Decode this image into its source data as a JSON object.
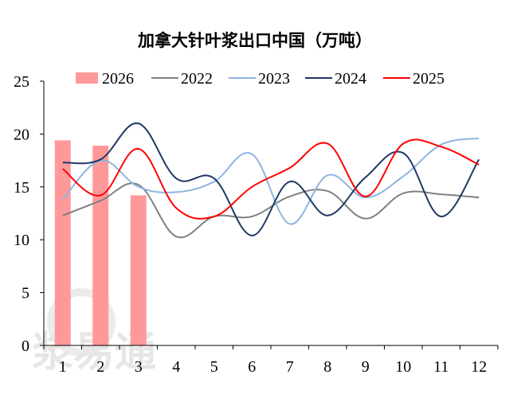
{
  "chart_data": {
    "type": "bar+line",
    "title": "加拿大针叶浆出口中国（万吨）",
    "categories": [
      "1",
      "2",
      "3",
      "4",
      "5",
      "6",
      "7",
      "8",
      "9",
      "10",
      "11",
      "12"
    ],
    "ylim": [
      0,
      25
    ],
    "yticks": [
      "0",
      "5",
      "10",
      "15",
      "20",
      "25"
    ],
    "grid": false,
    "legend_position": "top",
    "bar_series": {
      "name": "2026",
      "color": "#ff9999",
      "values": [
        19.4,
        18.9,
        14.2
      ]
    },
    "series": [
      {
        "name": "2022",
        "color": "#808080",
        "values": [
          12.3,
          13.7,
          15.2,
          10.3,
          12.2,
          12.2,
          14.1,
          14.6,
          12.0,
          14.4,
          14.3,
          14.0
        ]
      },
      {
        "name": "2023",
        "color": "#8db4e2",
        "values": [
          13.8,
          17.5,
          15.0,
          14.5,
          15.5,
          18.1,
          11.5,
          16.1,
          14.0,
          16.0,
          19.0,
          19.6
        ]
      },
      {
        "name": "2024",
        "color": "#1f3864",
        "values": [
          17.3,
          17.6,
          21.0,
          15.8,
          15.8,
          10.4,
          15.5,
          12.3,
          15.9,
          18.2,
          12.2,
          17.6
        ]
      },
      {
        "name": "2025",
        "color": "#ff0000",
        "values": [
          16.7,
          14.2,
          18.6,
          13.0,
          12.2,
          15.0,
          16.8,
          19.1,
          14.1,
          19.1,
          18.8,
          17.1
        ]
      }
    ]
  },
  "watermark": "浆易通"
}
